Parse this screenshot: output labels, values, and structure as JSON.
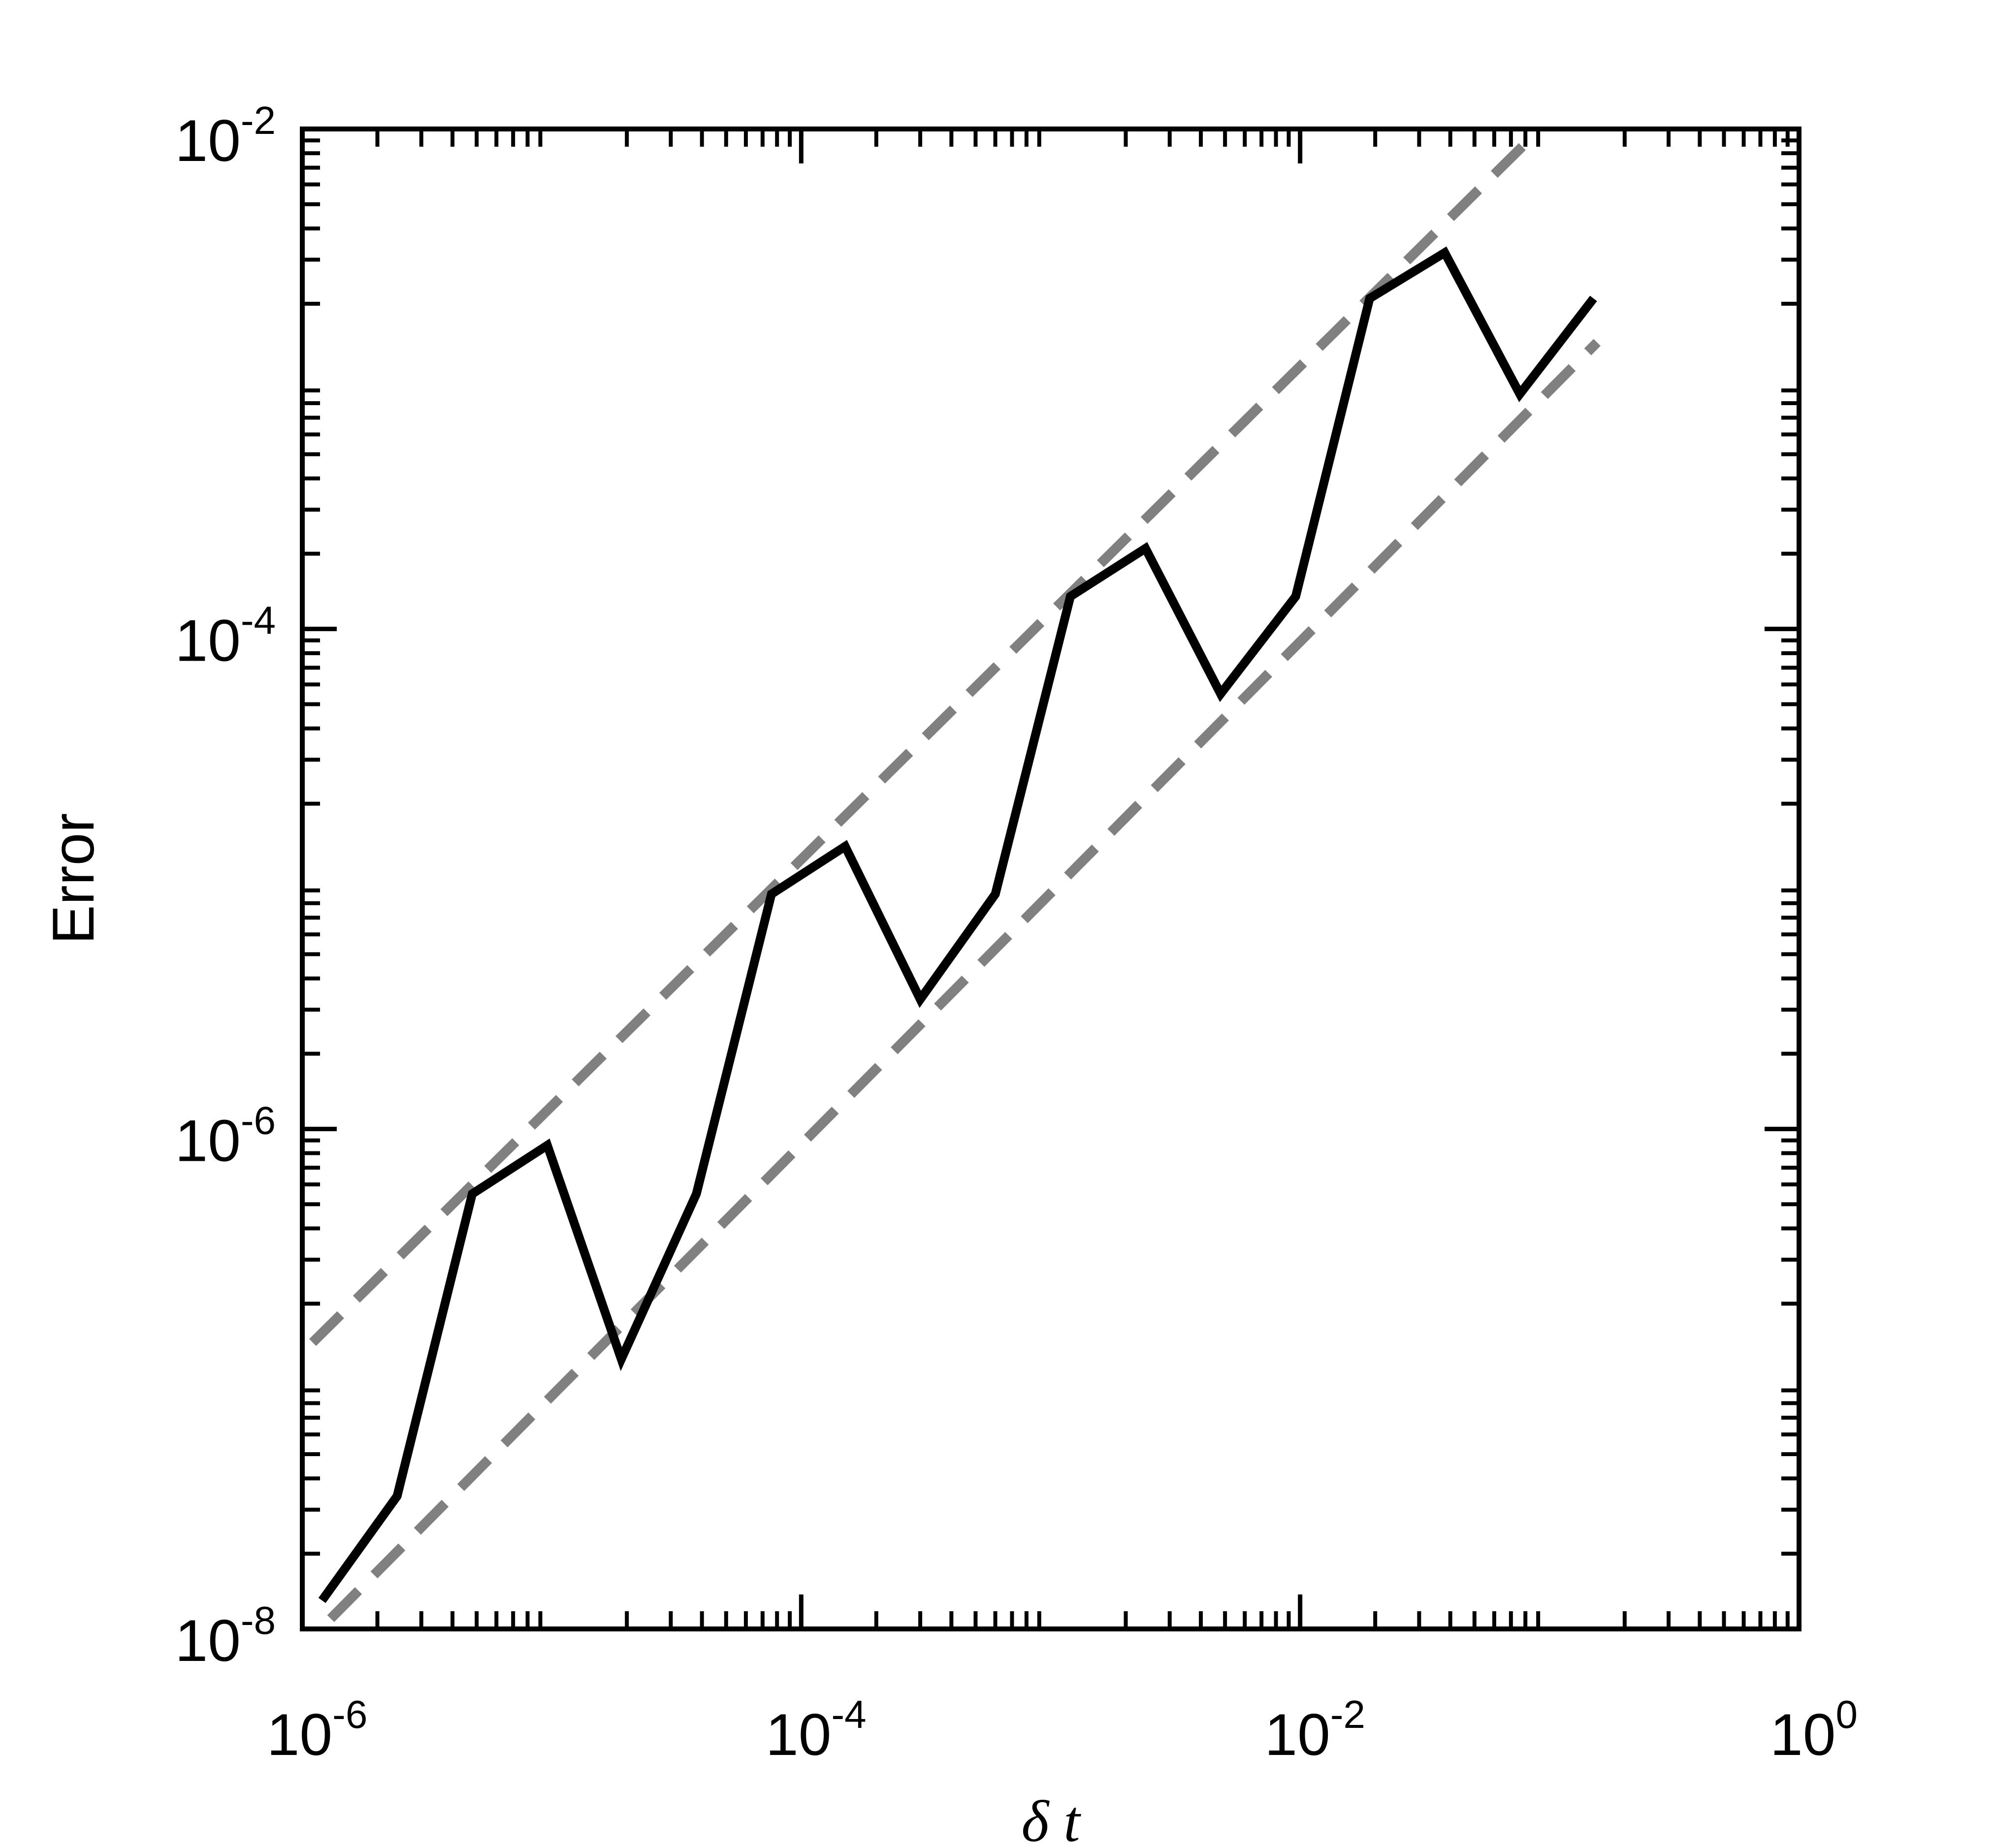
{
  "chart_data": {
    "type": "line",
    "title": "",
    "xlabel": "δ t",
    "ylabel": "Error",
    "x_scale": "log",
    "y_scale": "log",
    "xlim": [
      1e-06,
      1
    ],
    "ylim": [
      1e-08,
      0.01
    ],
    "x_ticks": [
      {
        "value": 1e-06,
        "base": "10",
        "exp": "-6"
      },
      {
        "value": 0.0001,
        "base": "10",
        "exp": "-4"
      },
      {
        "value": 0.01,
        "base": "10",
        "exp": "-2"
      },
      {
        "value": 1,
        "base": "10",
        "exp": "0"
      }
    ],
    "y_ticks": [
      {
        "value": 1e-08,
        "base": "10",
        "exp": "-8"
      },
      {
        "value": 1e-06,
        "base": "10",
        "exp": "-6"
      },
      {
        "value": 0.0001,
        "base": "10",
        "exp": "-4"
      },
      {
        "value": 0.01,
        "base": "10",
        "exp": "-2"
      }
    ],
    "grid": false,
    "legend": "none",
    "series": [
      {
        "style": "solid",
        "color": "#000000",
        "points": [
          [
            1.2e-06,
            1.3e-08
          ],
          [
            2.4e-06,
            3.4e-08
          ],
          [
            4.8e-06,
            5.5e-07
          ],
          [
            9.6e-06,
            8.6e-07
          ],
          [
            1.9e-05,
            1.2e-07
          ],
          [
            3.8e-05,
            5.5e-07
          ],
          [
            7.6e-05,
            8.7e-06
          ],
          [
            0.00015,
            1.35e-05
          ],
          [
            0.0003,
            3.3e-06
          ],
          [
            0.0006,
            8.7e-06
          ],
          [
            0.0012,
            0.000135
          ],
          [
            0.0024,
            0.00021
          ],
          [
            0.0048,
            5.5e-05
          ],
          [
            0.0096,
            0.000135
          ],
          [
            0.019,
            0.0021
          ],
          [
            0.038,
            0.0032
          ],
          [
            0.076,
            0.00087
          ],
          [
            0.15,
            0.0021
          ]
        ]
      },
      {
        "style": "dashed",
        "color": "#808080",
        "points": [
          [
            1.1e-06,
            1.4e-07
          ],
          [
            0.087,
            0.0095
          ]
        ]
      },
      {
        "style": "dashed",
        "color": "#808080",
        "points": [
          [
            1.3e-06,
            1.1e-08
          ],
          [
            0.155,
            0.0014
          ]
        ]
      }
    ]
  }
}
